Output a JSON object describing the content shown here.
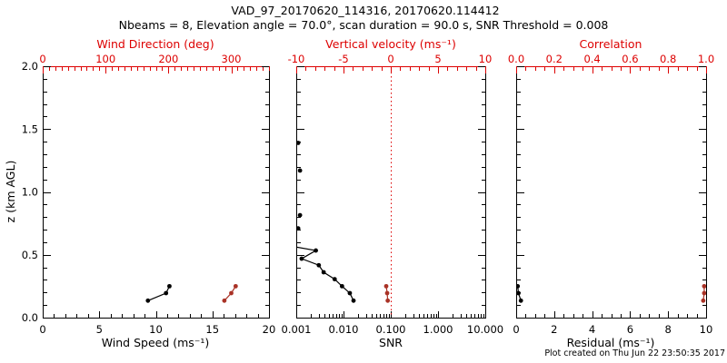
{
  "header": {
    "title": "VAD_97_20170620_114316, 20170620.114412",
    "subtitle": "Nbeams = 8, Elevation angle = 70.0°, scan duration = 90.0 s, SNR Threshold = 0.008"
  },
  "footer": {
    "created": "Plot created on Thu Jun 22 23:50:35 2017"
  },
  "colors": {
    "background": "#ffffff",
    "black": "#000000",
    "axis_red": "#dd0000",
    "data_red": "#a93226"
  },
  "y_axis": {
    "label": "z (km AGL)",
    "range": [
      0,
      2
    ],
    "ticks": [
      "0.0",
      "0.5",
      "1.0",
      "1.5",
      "2.0"
    ],
    "minor_step": 0.1
  },
  "chart_data": [
    {
      "name": "wind",
      "type": "line",
      "x_bottom": {
        "label": "Wind Speed (ms⁻¹)",
        "range": [
          0,
          20
        ],
        "ticks": [
          "0",
          "5",
          "10",
          "15",
          "20"
        ],
        "minor_step": 1
      },
      "x_top": {
        "label": "Wind Direction (deg)",
        "range": [
          0,
          360
        ],
        "ticks": [
          "0",
          "100",
          "200",
          "300"
        ],
        "minor_step": 10
      },
      "series": [
        {
          "name": "wind_speed",
          "axis": "bottom",
          "color": "black",
          "connect": true,
          "points": [
            [
              9.3,
              0.135
            ],
            [
              10.9,
              0.195
            ],
            [
              11.2,
              0.25
            ]
          ]
        },
        {
          "name": "wind_direction",
          "axis": "top",
          "color": "data_red",
          "connect": true,
          "points": [
            [
              289,
              0.135
            ],
            [
              300,
              0.195
            ],
            [
              307,
              0.25
            ]
          ]
        }
      ]
    },
    {
      "name": "snr",
      "type": "line",
      "x_bottom": {
        "label": "SNR",
        "scale": "log",
        "range": [
          0.001,
          10
        ],
        "ticks": [
          "0.001",
          "0.010",
          "0.100",
          "1.000",
          "10.000"
        ]
      },
      "x_top": {
        "label": "Vertical velocity (ms⁻¹)",
        "range": [
          -10,
          10
        ],
        "ticks": [
          "-10",
          "-5",
          "0",
          "5",
          "10"
        ],
        "minor_step": 1
      },
      "reference_line": {
        "axis": "top",
        "value": 0,
        "style": "dotted"
      },
      "series": [
        {
          "name": "snr_profile",
          "axis": "bottom",
          "color": "black",
          "connect": true,
          "points": [
            [
              0.00055,
              0.578
            ],
            [
              0.0026,
              0.534
            ],
            [
              0.0013,
              0.469
            ],
            [
              0.003,
              0.417
            ],
            [
              0.0038,
              0.361
            ],
            [
              0.0065,
              0.306
            ],
            [
              0.0093,
              0.25
            ],
            [
              0.0136,
              0.195
            ],
            [
              0.0163,
              0.135
            ]
          ]
        },
        {
          "name": "snr_below_threshold",
          "axis": "bottom",
          "color": "black",
          "connect": false,
          "points": [
            [
              0.0011,
              1.39
            ],
            [
              0.0012,
              1.17
            ],
            [
              0.0012,
              0.815
            ],
            [
              0.0011,
              0.71
            ]
          ]
        },
        {
          "name": "vertical_velocity",
          "axis": "top",
          "color": "data_red",
          "connect": true,
          "points": [
            [
              -0.48,
              0.25
            ],
            [
              -0.38,
              0.195
            ],
            [
              -0.32,
              0.135
            ]
          ]
        }
      ]
    },
    {
      "name": "residual",
      "type": "line",
      "x_bottom": {
        "label": "Residual (ms⁻¹)",
        "range": [
          0,
          10
        ],
        "ticks": [
          "0",
          "2",
          "4",
          "6",
          "8",
          "10"
        ],
        "minor_step": 0.5
      },
      "x_top": {
        "label": "Correlation",
        "range": [
          0,
          1
        ],
        "ticks": [
          "0.0",
          "0.2",
          "0.4",
          "0.6",
          "0.8",
          "1.0"
        ],
        "minor_step": 0.05
      },
      "series": [
        {
          "name": "residual",
          "axis": "bottom",
          "color": "black",
          "connect": true,
          "points": [
            [
              0.25,
              0.135
            ],
            [
              0.12,
              0.195
            ],
            [
              0.08,
              0.25
            ]
          ]
        },
        {
          "name": "correlation",
          "axis": "top",
          "color": "data_red",
          "connect": true,
          "points": [
            [
              0.985,
              0.135
            ],
            [
              0.99,
              0.195
            ],
            [
              0.99,
              0.25
            ]
          ]
        }
      ]
    }
  ]
}
